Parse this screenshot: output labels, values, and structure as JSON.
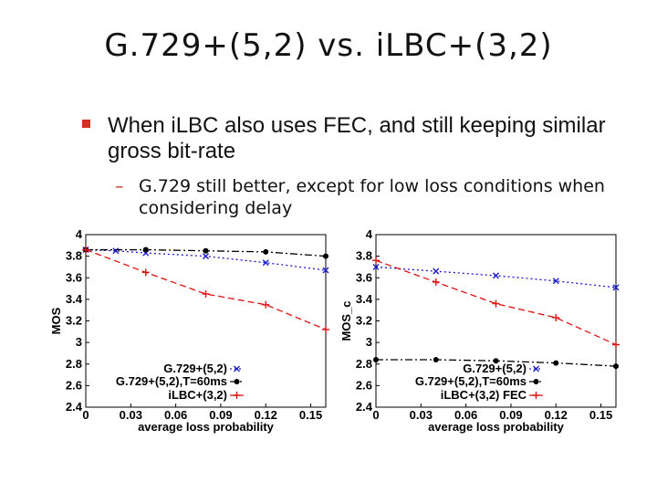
{
  "title": "G.729+(5,2) vs. iLBC+(3,2)",
  "bullet": "When iLBC also uses FEC, and still keeping similar gross bit-rate",
  "sub_bullet": "G.729 still better, except for low loss conditions when considering delay",
  "colors": {
    "g729": "#1a1acc",
    "g729_delay": "#000000",
    "ilbc": "#dd1111",
    "bullet_accent": "#cc3322"
  },
  "chart_data": [
    {
      "type": "line",
      "xlabel": "average loss probability",
      "ylabel": "MOS",
      "x_ticks": [
        "0",
        "0.03",
        "0.06",
        "0.09",
        "0.12",
        "0.15"
      ],
      "y_ticks": [
        "2.4",
        "2.6",
        "2.8",
        "3",
        "3.2",
        "3.4",
        "3.6",
        "3.8",
        "4"
      ],
      "xlim": [
        0,
        0.16
      ],
      "ylim": [
        2.4,
        4
      ],
      "grid": false,
      "legend_position": "bottom-center",
      "series": [
        {
          "name": "G.729+(5,2)",
          "style": "dotted",
          "marker": "x",
          "color": "#1a1acc",
          "x": [
            0,
            0.02,
            0.04,
            0.08,
            0.12,
            0.16
          ],
          "y": [
            3.86,
            3.85,
            3.83,
            3.8,
            3.74,
            3.67
          ]
        },
        {
          "name": "G.729+(5,2),T=60ms",
          "style": "dashdot",
          "marker": "dot",
          "color": "#000000",
          "x": [
            0,
            0.04,
            0.08,
            0.12,
            0.16
          ],
          "y": [
            3.86,
            3.86,
            3.85,
            3.84,
            3.8
          ]
        },
        {
          "name": "iLBC+(3,2)",
          "style": "dashed",
          "marker": "+",
          "color": "#dd1111",
          "x": [
            0,
            0.04,
            0.08,
            0.12,
            0.16
          ],
          "y": [
            3.86,
            3.65,
            3.45,
            3.35,
            3.12
          ]
        }
      ]
    },
    {
      "type": "line",
      "xlabel": "average loss probability",
      "ylabel": "MOS_c",
      "x_ticks": [
        "0",
        "0.03",
        "0.06",
        "0.09",
        "0.12",
        "0.15"
      ],
      "y_ticks": [
        "2.4",
        "2.6",
        "2.8",
        "3",
        "3.2",
        "3.4",
        "3.6",
        "3.8",
        "4"
      ],
      "xlim": [
        0,
        0.16
      ],
      "ylim": [
        2.4,
        4
      ],
      "grid": false,
      "legend_position": "bottom-center",
      "series": [
        {
          "name": "G.729+(5,2)",
          "style": "dotted",
          "marker": "x",
          "color": "#1a1acc",
          "x": [
            0,
            0.04,
            0.08,
            0.12,
            0.16
          ],
          "y": [
            3.7,
            3.66,
            3.62,
            3.57,
            3.51
          ]
        },
        {
          "name": "G.729+(5,2),T=60ms",
          "style": "dashdot",
          "marker": "dot",
          "color": "#000000",
          "x": [
            0,
            0.04,
            0.08,
            0.12,
            0.16
          ],
          "y": [
            2.84,
            2.84,
            2.83,
            2.81,
            2.78
          ]
        },
        {
          "name": "iLBC+(3,2) FEC",
          "style": "dashed",
          "marker": "+",
          "color": "#dd1111",
          "x": [
            0,
            0.04,
            0.08,
            0.12,
            0.16
          ],
          "y": [
            3.76,
            3.56,
            3.36,
            3.23,
            2.98
          ]
        }
      ]
    }
  ]
}
